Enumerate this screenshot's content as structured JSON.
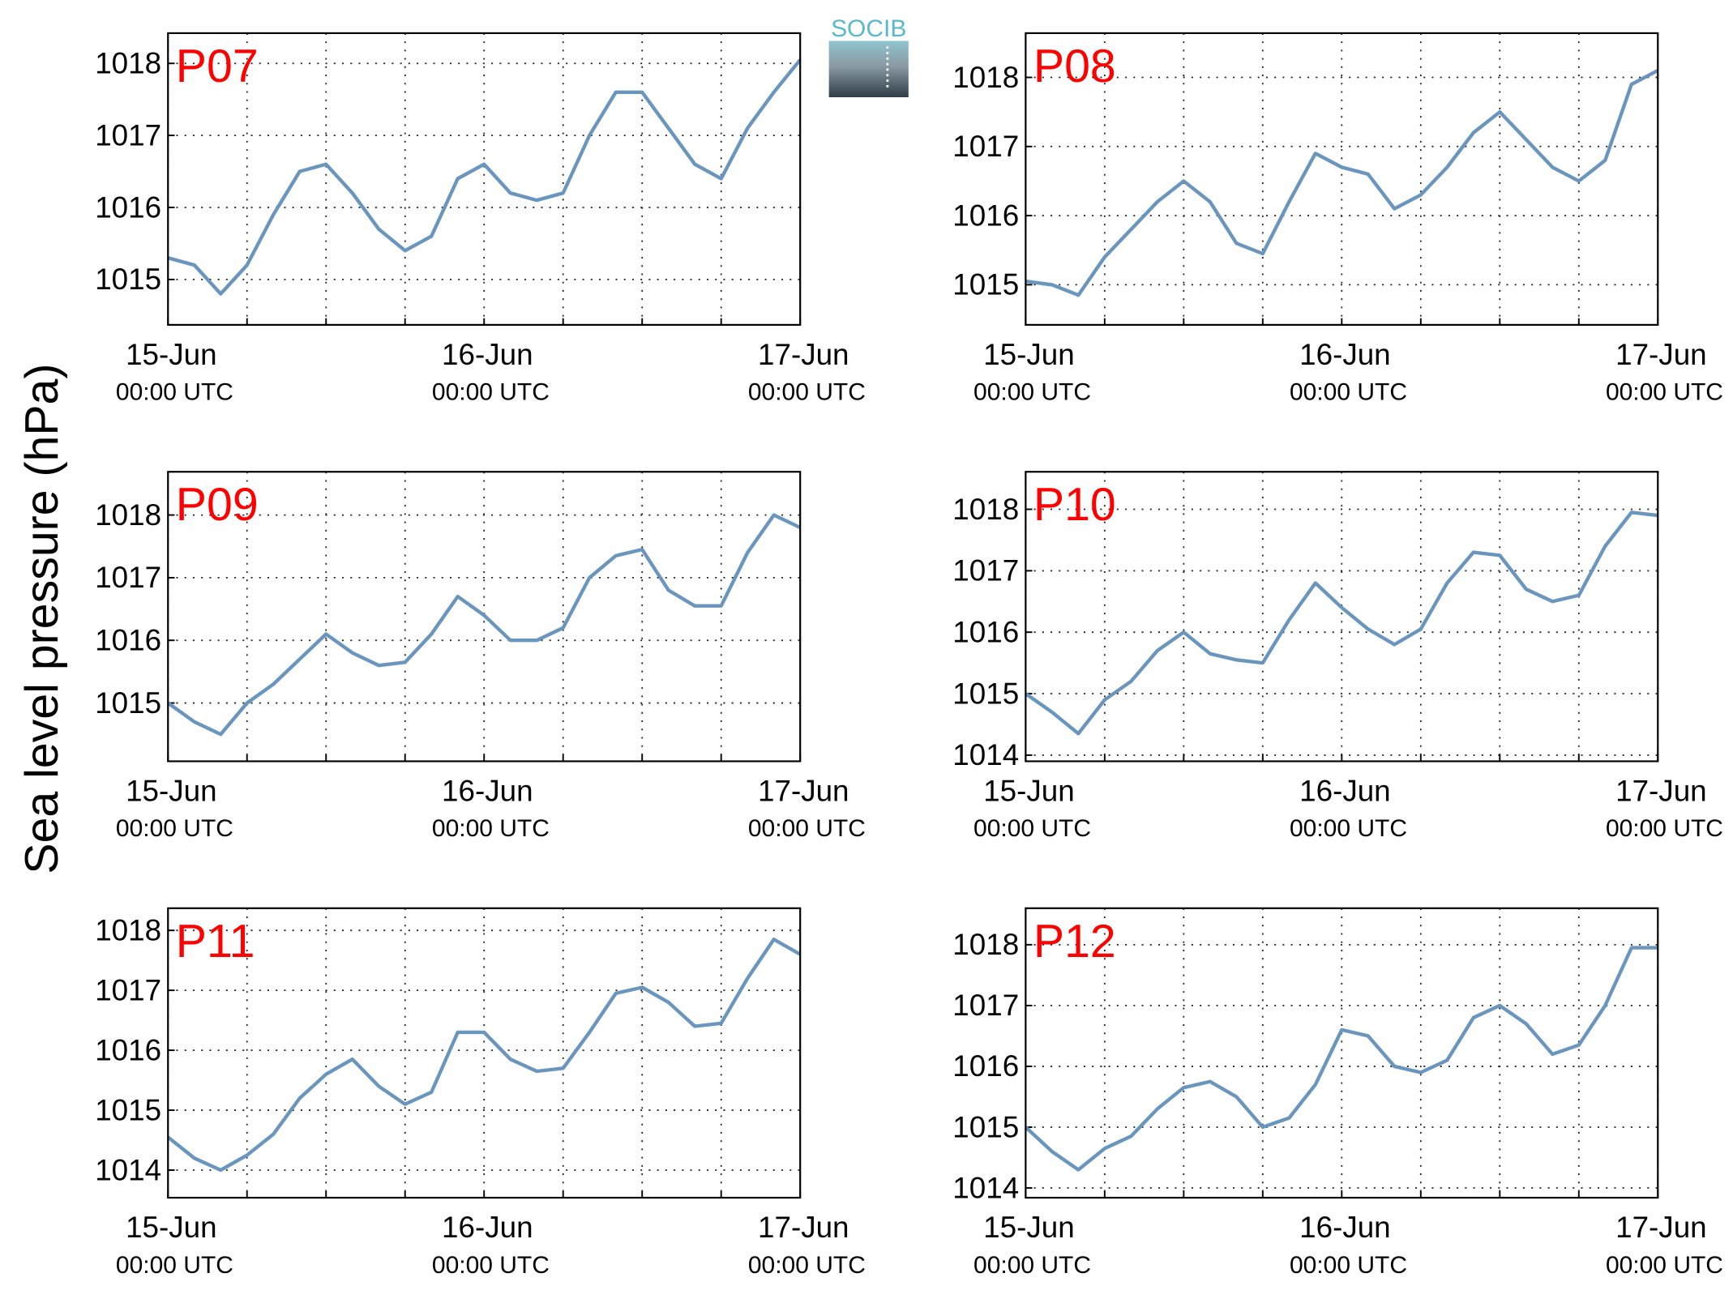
{
  "figure": {
    "ylabel": "Sea level pressure (hPa)",
    "logo": "SOCIB"
  },
  "chart_data": [
    {
      "type": "line",
      "title": "P07",
      "color": "#6a95bd",
      "grid": true,
      "x": [
        "15-Jun 00:00",
        "15-Jun 02:00",
        "15-Jun 04:00",
        "15-Jun 06:00",
        "15-Jun 08:00",
        "15-Jun 10:00",
        "15-Jun 12:00",
        "15-Jun 14:00",
        "15-Jun 16:00",
        "15-Jun 18:00",
        "15-Jun 20:00",
        "15-Jun 22:00",
        "16-Jun 00:00",
        "16-Jun 02:00",
        "16-Jun 04:00",
        "16-Jun 06:00",
        "16-Jun 08:00",
        "16-Jun 10:00",
        "16-Jun 12:00",
        "16-Jun 14:00",
        "16-Jun 16:00",
        "16-Jun 18:00",
        "16-Jun 20:00",
        "16-Jun 22:00",
        "17-Jun 00:00"
      ],
      "values": [
        1015.3,
        1015.2,
        1014.8,
        1015.2,
        1015.9,
        1016.5,
        1016.6,
        1016.2,
        1015.7,
        1015.4,
        1015.6,
        1016.4,
        1016.6,
        1016.2,
        1016.1,
        1016.2,
        1017.0,
        1017.6,
        1017.6,
        1017.1,
        1016.6,
        1016.4,
        1017.1,
        1017.6,
        1018.05
      ],
      "xlim": [
        "15-Jun 00:00",
        "17-Jun 00:00"
      ],
      "xticks": [
        {
          "value": "15-Jun 00:00",
          "label": "15-Jun",
          "sublabel": "00:00 UTC"
        },
        "15-Jun 06:00",
        "15-Jun 12:00",
        "15-Jun 18:00",
        {
          "value": "16-Jun 00:00",
          "label": "16-Jun",
          "sublabel": "00:00 UTC"
        },
        "16-Jun 06:00",
        "16-Jun 12:00",
        "16-Jun 18:00",
        {
          "value": "17-Jun 00:00",
          "label": "17-Jun",
          "sublabel": "00:00 UTC"
        }
      ],
      "ylim": [
        1014.37,
        1018.42
      ],
      "yticks": [
        1015,
        1016,
        1017,
        1018
      ]
    },
    {
      "type": "line",
      "title": "P08",
      "color": "#6a95bd",
      "grid": true,
      "x": [
        "15-Jun 00:00",
        "15-Jun 02:00",
        "15-Jun 04:00",
        "15-Jun 06:00",
        "15-Jun 08:00",
        "15-Jun 10:00",
        "15-Jun 12:00",
        "15-Jun 14:00",
        "15-Jun 16:00",
        "15-Jun 18:00",
        "15-Jun 20:00",
        "15-Jun 22:00",
        "16-Jun 00:00",
        "16-Jun 02:00",
        "16-Jun 04:00",
        "16-Jun 06:00",
        "16-Jun 08:00",
        "16-Jun 10:00",
        "16-Jun 12:00",
        "16-Jun 14:00",
        "16-Jun 16:00",
        "16-Jun 18:00",
        "16-Jun 20:00",
        "16-Jun 22:00",
        "17-Jun 00:00"
      ],
      "values": [
        1015.05,
        1015.0,
        1014.85,
        1015.4,
        1015.8,
        1016.2,
        1016.5,
        1016.2,
        1015.6,
        1015.45,
        1016.2,
        1016.9,
        1016.7,
        1016.6,
        1016.1,
        1016.3,
        1016.7,
        1017.2,
        1017.5,
        1017.1,
        1016.7,
        1016.5,
        1016.8,
        1017.9,
        1018.1
      ],
      "xlim": [
        "15-Jun 00:00",
        "17-Jun 00:00"
      ],
      "xticks": [
        {
          "value": "15-Jun 00:00",
          "label": "15-Jun",
          "sublabel": "00:00 UTC"
        },
        "15-Jun 06:00",
        "15-Jun 12:00",
        "15-Jun 18:00",
        {
          "value": "16-Jun 00:00",
          "label": "16-Jun",
          "sublabel": "00:00 UTC"
        },
        "16-Jun 06:00",
        "16-Jun 12:00",
        "16-Jun 18:00",
        {
          "value": "17-Jun 00:00",
          "label": "17-Jun",
          "sublabel": "00:00 UTC"
        }
      ],
      "ylim": [
        1014.42,
        1018.64
      ],
      "yticks": [
        1015,
        1016,
        1017,
        1018
      ]
    },
    {
      "type": "line",
      "title": "P09",
      "color": "#6a95bd",
      "grid": true,
      "x": [
        "15-Jun 00:00",
        "15-Jun 02:00",
        "15-Jun 04:00",
        "15-Jun 06:00",
        "15-Jun 08:00",
        "15-Jun 10:00",
        "15-Jun 12:00",
        "15-Jun 14:00",
        "15-Jun 16:00",
        "15-Jun 18:00",
        "15-Jun 20:00",
        "15-Jun 22:00",
        "16-Jun 00:00",
        "16-Jun 02:00",
        "16-Jun 04:00",
        "16-Jun 06:00",
        "16-Jun 08:00",
        "16-Jun 10:00",
        "16-Jun 12:00",
        "16-Jun 14:00",
        "16-Jun 16:00",
        "16-Jun 18:00",
        "16-Jun 20:00",
        "16-Jun 22:00",
        "17-Jun 00:00"
      ],
      "values": [
        1015.0,
        1014.7,
        1014.5,
        1015.0,
        1015.3,
        1015.7,
        1016.1,
        1015.8,
        1015.6,
        1015.65,
        1016.1,
        1016.7,
        1016.4,
        1016.0,
        1016.0,
        1016.2,
        1017.0,
        1017.35,
        1017.45,
        1016.8,
        1016.55,
        1016.55,
        1017.4,
        1018.0,
        1017.8
      ],
      "xlim": [
        "15-Jun 00:00",
        "17-Jun 00:00"
      ],
      "xticks": [
        {
          "value": "15-Jun 00:00",
          "label": "15-Jun",
          "sublabel": "00:00 UTC"
        },
        "15-Jun 06:00",
        "15-Jun 12:00",
        "15-Jun 18:00",
        {
          "value": "16-Jun 00:00",
          "label": "16-Jun",
          "sublabel": "00:00 UTC"
        },
        "16-Jun 06:00",
        "16-Jun 12:00",
        "16-Jun 18:00",
        {
          "value": "17-Jun 00:00",
          "label": "17-Jun",
          "sublabel": "00:00 UTC"
        }
      ],
      "ylim": [
        1014.07,
        1018.69
      ],
      "yticks": [
        1015,
        1016,
        1017,
        1018
      ]
    },
    {
      "type": "line",
      "title": "P10",
      "color": "#6a95bd",
      "grid": true,
      "x": [
        "15-Jun 00:00",
        "15-Jun 02:00",
        "15-Jun 04:00",
        "15-Jun 06:00",
        "15-Jun 08:00",
        "15-Jun 10:00",
        "15-Jun 12:00",
        "15-Jun 14:00",
        "15-Jun 16:00",
        "15-Jun 18:00",
        "15-Jun 20:00",
        "15-Jun 22:00",
        "16-Jun 00:00",
        "16-Jun 02:00",
        "16-Jun 04:00",
        "16-Jun 06:00",
        "16-Jun 08:00",
        "16-Jun 10:00",
        "16-Jun 12:00",
        "16-Jun 14:00",
        "16-Jun 16:00",
        "16-Jun 18:00",
        "16-Jun 20:00",
        "16-Jun 22:00",
        "17-Jun 00:00"
      ],
      "values": [
        1015.0,
        1014.7,
        1014.35,
        1014.9,
        1015.2,
        1015.7,
        1016.0,
        1015.65,
        1015.55,
        1015.5,
        1016.2,
        1016.8,
        1016.4,
        1016.05,
        1015.8,
        1016.05,
        1016.8,
        1017.3,
        1017.25,
        1016.7,
        1016.5,
        1016.6,
        1017.4,
        1017.95,
        1017.9
      ],
      "xlim": [
        "15-Jun 00:00",
        "17-Jun 00:00"
      ],
      "xticks": [
        {
          "value": "15-Jun 00:00",
          "label": "15-Jun",
          "sublabel": "00:00 UTC"
        },
        "15-Jun 06:00",
        "15-Jun 12:00",
        "15-Jun 18:00",
        {
          "value": "16-Jun 00:00",
          "label": "16-Jun",
          "sublabel": "00:00 UTC"
        },
        "16-Jun 06:00",
        "16-Jun 12:00",
        "16-Jun 18:00",
        {
          "value": "17-Jun 00:00",
          "label": "17-Jun",
          "sublabel": "00:00 UTC"
        }
      ],
      "ylim": [
        1013.9,
        1018.61
      ],
      "yticks": [
        1014,
        1015,
        1016,
        1017,
        1018
      ]
    },
    {
      "type": "line",
      "title": "P11",
      "color": "#6a95bd",
      "grid": true,
      "x": [
        "15-Jun 00:00",
        "15-Jun 02:00",
        "15-Jun 04:00",
        "15-Jun 06:00",
        "15-Jun 08:00",
        "15-Jun 10:00",
        "15-Jun 12:00",
        "15-Jun 14:00",
        "15-Jun 16:00",
        "15-Jun 18:00",
        "15-Jun 20:00",
        "15-Jun 22:00",
        "16-Jun 00:00",
        "16-Jun 02:00",
        "16-Jun 04:00",
        "16-Jun 06:00",
        "16-Jun 08:00",
        "16-Jun 10:00",
        "16-Jun 12:00",
        "16-Jun 14:00",
        "16-Jun 16:00",
        "16-Jun 18:00",
        "16-Jun 20:00",
        "16-Jun 22:00",
        "17-Jun 00:00"
      ],
      "values": [
        1014.55,
        1014.2,
        1014.0,
        1014.25,
        1014.6,
        1015.2,
        1015.6,
        1015.85,
        1015.4,
        1015.1,
        1015.3,
        1016.3,
        1016.3,
        1015.85,
        1015.65,
        1015.7,
        1016.3,
        1016.95,
        1017.05,
        1016.8,
        1016.4,
        1016.45,
        1017.2,
        1017.85,
        1017.6
      ],
      "xlim": [
        "15-Jun 00:00",
        "17-Jun 00:00"
      ],
      "xticks": [
        {
          "value": "15-Jun 00:00",
          "label": "15-Jun",
          "sublabel": "00:00 UTC"
        },
        "15-Jun 06:00",
        "15-Jun 12:00",
        "15-Jun 18:00",
        {
          "value": "16-Jun 00:00",
          "label": "16-Jun",
          "sublabel": "00:00 UTC"
        },
        "16-Jun 06:00",
        "16-Jun 12:00",
        "16-Jun 18:00",
        {
          "value": "17-Jun 00:00",
          "label": "17-Jun",
          "sublabel": "00:00 UTC"
        }
      ],
      "ylim": [
        1013.54,
        1018.37
      ],
      "yticks": [
        1014,
        1015,
        1016,
        1017,
        1018
      ]
    },
    {
      "type": "line",
      "title": "P12",
      "color": "#6a95bd",
      "grid": true,
      "x": [
        "15-Jun 00:00",
        "15-Jun 02:00",
        "15-Jun 04:00",
        "15-Jun 06:00",
        "15-Jun 08:00",
        "15-Jun 10:00",
        "15-Jun 12:00",
        "15-Jun 14:00",
        "15-Jun 16:00",
        "15-Jun 18:00",
        "15-Jun 20:00",
        "15-Jun 22:00",
        "16-Jun 00:00",
        "16-Jun 02:00",
        "16-Jun 04:00",
        "16-Jun 06:00",
        "16-Jun 08:00",
        "16-Jun 10:00",
        "16-Jun 12:00",
        "16-Jun 14:00",
        "16-Jun 16:00",
        "16-Jun 18:00",
        "16-Jun 20:00",
        "16-Jun 22:00",
        "17-Jun 00:00"
      ],
      "values": [
        1015.0,
        1014.6,
        1014.3,
        1014.65,
        1014.85,
        1015.3,
        1015.65,
        1015.75,
        1015.5,
        1015.0,
        1015.15,
        1015.7,
        1016.6,
        1016.5,
        1016.0,
        1015.9,
        1016.1,
        1016.8,
        1017.0,
        1016.7,
        1016.2,
        1016.35,
        1017.0,
        1017.95,
        1017.95
      ],
      "xlim": [
        "15-Jun 00:00",
        "17-Jun 00:00"
      ],
      "xticks": [
        {
          "value": "15-Jun 00:00",
          "label": "15-Jun",
          "sublabel": "00:00 UTC"
        },
        "15-Jun 06:00",
        "15-Jun 12:00",
        "15-Jun 18:00",
        {
          "value": "16-Jun 00:00",
          "label": "16-Jun",
          "sublabel": "00:00 UTC"
        },
        "16-Jun 06:00",
        "16-Jun 12:00",
        "16-Jun 18:00",
        {
          "value": "17-Jun 00:00",
          "label": "17-Jun",
          "sublabel": "00:00 UTC"
        }
      ],
      "ylim": [
        1013.84,
        1018.6
      ],
      "yticks": [
        1014,
        1015,
        1016,
        1017,
        1018
      ]
    }
  ]
}
